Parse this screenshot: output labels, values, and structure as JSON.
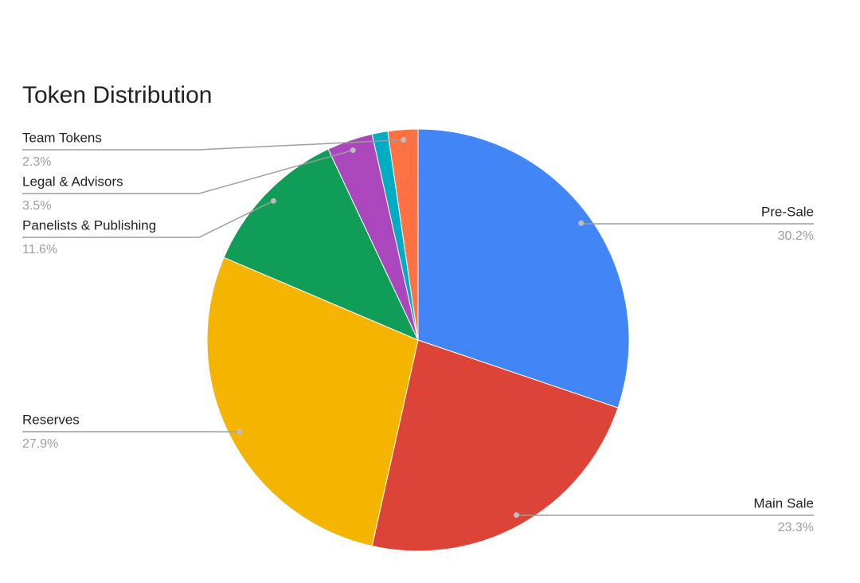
{
  "chart_data": {
    "type": "pie",
    "title": "Token Distribution",
    "categories": [
      "Pre-Sale",
      "Main Sale",
      "Reserves",
      "Panelists & Publishing",
      "Legal & Advisors",
      null,
      "Team Tokens"
    ],
    "values": [
      30.2,
      23.3,
      27.9,
      11.6,
      3.5,
      1.2,
      2.3
    ],
    "value_labels": [
      "30.2%",
      "23.3%",
      "27.9%",
      "11.6%",
      "3.5%",
      null,
      "2.3%"
    ],
    "colors": [
      "#4285f4",
      "#db4437",
      "#f4b400",
      "#0f9d58",
      "#ab47bc",
      "#00acc1",
      "#ff7043"
    ]
  }
}
